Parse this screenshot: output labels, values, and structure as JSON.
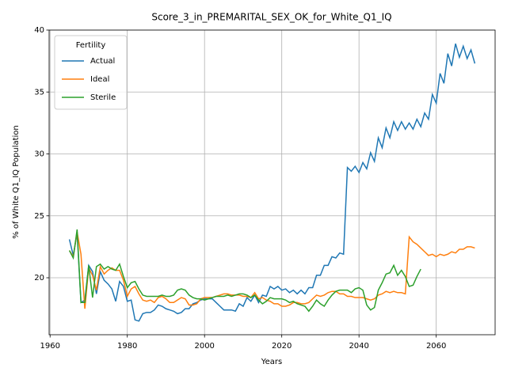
{
  "chart_data": {
    "type": "line",
    "title": "Score_3_in_PREMARITAL_SEX_OK_for_White_Q1_IQ",
    "x_label": "Years",
    "y_label": "% of White Q1_IQ Population",
    "legend_title": "Fertility",
    "legend": "upper left",
    "grid": true,
    "xlim": [
      1959.75,
      2075.25
    ],
    "xticks": [
      1960,
      1980,
      2000,
      2020,
      2040,
      2060
    ],
    "ylim": [
      15.4,
      40.0
    ],
    "yticks": [
      20,
      25,
      30,
      35,
      40
    ],
    "x": [
      1965,
      1966,
      1967,
      1968,
      1969,
      1970,
      1971,
      1972,
      1973,
      1974,
      1975,
      1976,
      1977,
      1978,
      1979,
      1980,
      1981,
      1982,
      1983,
      1984,
      1985,
      1986,
      1987,
      1988,
      1989,
      1990,
      1991,
      1992,
      1993,
      1994,
      1995,
      1996,
      1997,
      1998,
      1999,
      2000,
      2001,
      2002,
      2003,
      2004,
      2005,
      2006,
      2007,
      2008,
      2009,
      2010,
      2011,
      2012,
      2013,
      2014,
      2015,
      2016,
      2017,
      2018,
      2019,
      2020,
      2021,
      2022,
      2023,
      2024,
      2025,
      2026,
      2027,
      2028,
      2029,
      2030,
      2031,
      2032,
      2033,
      2034,
      2035,
      2036,
      2037,
      2038,
      2039,
      2040,
      2041,
      2042,
      2043,
      2044,
      2045,
      2046,
      2047,
      2048,
      2049,
      2050,
      2051,
      2052,
      2053,
      2054,
      2055,
      2056,
      2057,
      2058,
      2059,
      2060,
      2061,
      2062,
      2063,
      2064,
      2065,
      2066,
      2067,
      2068,
      2069,
      2070
    ],
    "series": [
      {
        "name": "Actual",
        "color": "#1f77b4",
        "values": [
          23.1,
          21.8,
          23.6,
          18.0,
          18.2,
          21.0,
          20.5,
          18.7,
          20.5,
          19.8,
          19.5,
          19.1,
          18.1,
          19.7,
          19.3,
          18.1,
          18.2,
          16.6,
          16.5,
          17.1,
          17.2,
          17.2,
          17.4,
          17.8,
          17.7,
          17.5,
          17.4,
          17.3,
          17.1,
          17.2,
          17.5,
          17.5,
          17.9,
          18.0,
          18.2,
          18.3,
          18.3,
          18.3,
          18.0,
          17.7,
          17.4,
          17.4,
          17.4,
          17.3,
          17.9,
          17.7,
          18.4,
          18.1,
          18.6,
          18.0,
          18.6,
          18.5,
          19.3,
          19.1,
          19.3,
          19.0,
          19.1,
          18.8,
          19.0,
          18.7,
          19.0,
          18.7,
          19.2,
          19.2,
          20.2,
          20.2,
          21.0,
          21.0,
          21.7,
          21.6,
          22.0,
          21.9,
          28.9,
          28.6,
          29.0,
          28.5,
          29.3,
          28.8,
          30.1,
          29.4,
          31.3,
          30.5,
          32.1,
          31.3,
          32.6,
          31.9,
          32.6,
          32.0,
          32.5,
          32.0,
          32.8,
          32.2,
          33.3,
          32.8,
          34.8,
          34.1,
          36.5,
          35.7,
          38.1,
          37.1,
          38.9,
          37.8,
          38.7,
          37.7,
          38.4,
          37.3
        ]
      },
      {
        "name": "Ideal",
        "color": "#ff7f0e",
        "values": [
          22.2,
          21.7,
          23.7,
          21.9,
          17.5,
          20.8,
          20.2,
          19.0,
          20.9,
          20.3,
          20.6,
          20.8,
          20.6,
          20.6,
          19.8,
          18.5,
          19.1,
          19.3,
          18.7,
          18.2,
          18.1,
          18.2,
          18.0,
          18.4,
          18.5,
          18.3,
          18.0,
          18.0,
          18.2,
          18.4,
          18.3,
          17.8,
          17.8,
          17.9,
          18.3,
          18.4,
          18.4,
          18.4,
          18.5,
          18.6,
          18.7,
          18.7,
          18.6,
          18.6,
          18.6,
          18.5,
          18.5,
          18.4,
          18.8,
          18.3,
          18.4,
          18.2,
          18.1,
          17.9,
          17.9,
          17.7,
          17.7,
          17.8,
          18.0,
          18.0,
          17.9,
          17.9,
          18.0,
          18.3,
          18.6,
          18.5,
          18.6,
          18.8,
          18.9,
          18.9,
          18.7,
          18.7,
          18.5,
          18.5,
          18.4,
          18.4,
          18.4,
          18.3,
          18.2,
          18.3,
          18.6,
          18.7,
          18.9,
          18.8,
          18.9,
          18.8,
          18.8,
          18.7,
          23.3,
          22.9,
          22.7,
          22.4,
          22.1,
          21.8,
          21.9,
          21.7,
          21.9,
          21.8,
          21.9,
          22.1,
          22.0,
          22.3,
          22.3,
          22.5,
          22.5,
          22.4
        ]
      },
      {
        "name": "Sterile",
        "color": "#2ca02c",
        "values": [
          22.2,
          21.6,
          23.9,
          18.0,
          18.0,
          21.0,
          18.4,
          20.9,
          21.1,
          20.7,
          20.9,
          20.7,
          20.6,
          21.1,
          20.1,
          19.2,
          19.6,
          19.7,
          19.1,
          18.6,
          18.5,
          18.5,
          18.5,
          18.5,
          18.6,
          18.5,
          18.5,
          18.6,
          19.0,
          19.1,
          19.0,
          18.6,
          18.4,
          18.3,
          18.3,
          18.2,
          18.3,
          18.4,
          18.5,
          18.5,
          18.5,
          18.6,
          18.5,
          18.6,
          18.7,
          18.7,
          18.6,
          18.4,
          18.6,
          18.2,
          17.9,
          18.1,
          18.4,
          18.3,
          18.3,
          18.3,
          18.2,
          18.0,
          18.1,
          17.9,
          17.8,
          17.7,
          17.3,
          17.7,
          18.2,
          17.9,
          17.7,
          18.2,
          18.6,
          18.9,
          19.0,
          19.0,
          19.0,
          18.8,
          19.1,
          19.2,
          19.0,
          17.8,
          17.4,
          17.6,
          19.0,
          19.6,
          20.3,
          20.4,
          21.0,
          20.2,
          20.6,
          20.1,
          19.3,
          19.4,
          20.1,
          20.7,
          null,
          null,
          null,
          null,
          null,
          null,
          null,
          null,
          null,
          null,
          null,
          null,
          null,
          null
        ]
      }
    ]
  }
}
